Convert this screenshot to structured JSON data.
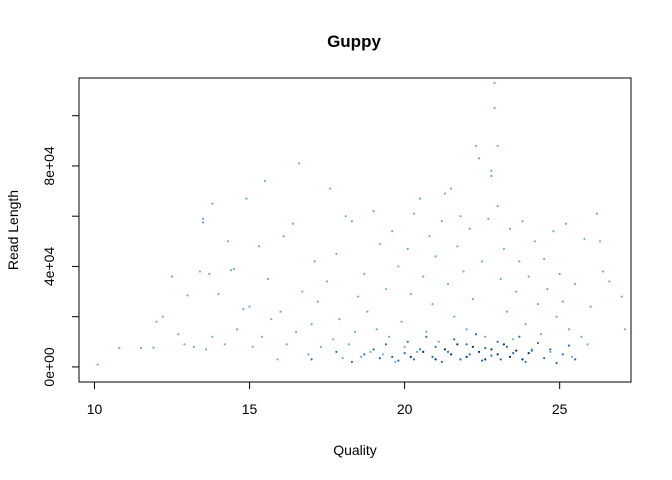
{
  "chart_data": {
    "type": "scatter",
    "title": "Guppy",
    "xlabel": "Quality",
    "ylabel": "Read Length",
    "xlim": [
      9.5,
      27.3
    ],
    "ylim": [
      -6000,
      115000
    ],
    "xticks": [
      10,
      15,
      20,
      25
    ],
    "xtick_labels": [
      "10",
      "15",
      "20",
      "25"
    ],
    "yticks": [
      0,
      20000,
      40000,
      60000,
      80000,
      100000
    ],
    "ytick_labels": [
      "0e+00",
      "",
      "4e+04",
      "",
      "8e+04",
      ""
    ],
    "grid": false,
    "legend": "none",
    "colors": {
      "light": "#6BAED6",
      "medium": "#2171B5",
      "dark": "#08306B",
      "axis": "#000000"
    },
    "series": [
      {
        "values": [
          [
            10.1,
            900
          ],
          [
            10.8,
            7500
          ],
          [
            11.5,
            7600
          ],
          [
            11.9,
            7700
          ],
          [
            12.0,
            18000
          ],
          [
            12.2,
            20000
          ],
          [
            12.5,
            36000
          ],
          [
            12.7,
            13000
          ],
          [
            12.9,
            9000
          ],
          [
            13.0,
            28500
          ],
          [
            13.2,
            8000
          ],
          [
            13.4,
            38000
          ],
          [
            13.5,
            59000
          ],
          [
            13.5,
            57500
          ],
          [
            13.6,
            7000
          ],
          [
            13.7,
            37000
          ],
          [
            13.8,
            12000
          ],
          [
            13.8,
            65000
          ],
          [
            14.0,
            29000
          ],
          [
            14.2,
            9000
          ],
          [
            14.3,
            50000
          ],
          [
            14.4,
            38500
          ],
          [
            14.5,
            39000
          ],
          [
            14.6,
            15000
          ],
          [
            14.8,
            23000
          ],
          [
            14.9,
            67000
          ],
          [
            15.0,
            24000
          ],
          [
            15.1,
            8000
          ],
          [
            15.3,
            48000
          ],
          [
            15.4,
            12000
          ],
          [
            15.5,
            74000
          ],
          [
            15.6,
            35000
          ],
          [
            15.7,
            19000
          ],
          [
            15.9,
            3000
          ],
          [
            16.0,
            22000
          ],
          [
            16.1,
            52000
          ],
          [
            16.2,
            9000
          ],
          [
            16.4,
            57000
          ],
          [
            16.5,
            14000
          ],
          [
            16.6,
            81000
          ],
          [
            16.7,
            30000
          ],
          [
            16.9,
            5000
          ],
          [
            17.0,
            17000
          ],
          [
            17.1,
            42000
          ],
          [
            17.2,
            26000
          ],
          [
            17.3,
            8000
          ],
          [
            17.5,
            34000
          ],
          [
            17.6,
            71000
          ],
          [
            17.7,
            11000
          ],
          [
            17.8,
            45000
          ],
          [
            17.9,
            19000
          ],
          [
            18.0,
            3500
          ],
          [
            18.1,
            60000
          ],
          [
            18.2,
            9000
          ],
          [
            18.3,
            58000
          ],
          [
            18.4,
            14000
          ],
          [
            18.5,
            28000
          ],
          [
            18.6,
            4000
          ],
          [
            18.7,
            37000
          ],
          [
            18.8,
            22000
          ],
          [
            18.9,
            6000
          ],
          [
            19.0,
            62000
          ],
          [
            19.1,
            15000
          ],
          [
            19.2,
            49000
          ],
          [
            19.3,
            5000
          ],
          [
            19.4,
            31000
          ],
          [
            19.5,
            12000
          ],
          [
            19.6,
            54000
          ],
          [
            19.7,
            2000
          ],
          [
            19.8,
            40000
          ],
          [
            19.9,
            18000
          ],
          [
            20.0,
            8000
          ],
          [
            20.1,
            47000
          ],
          [
            20.2,
            29000
          ],
          [
            20.3,
            61000
          ],
          [
            20.4,
            6000
          ],
          [
            20.5,
            67000
          ],
          [
            20.6,
            36000
          ],
          [
            20.7,
            14000
          ],
          [
            20.8,
            52000
          ],
          [
            20.9,
            25000
          ],
          [
            21.0,
            44000
          ],
          [
            21.1,
            10000
          ],
          [
            21.2,
            58000
          ],
          [
            21.3,
            69000
          ],
          [
            21.4,
            33000
          ],
          [
            21.5,
            71000
          ],
          [
            21.6,
            20000
          ],
          [
            21.7,
            48000
          ],
          [
            21.8,
            60000
          ],
          [
            21.9,
            38000
          ],
          [
            22.0,
            15000
          ],
          [
            22.1,
            55000
          ],
          [
            22.2,
            27000
          ],
          [
            22.3,
            88000
          ],
          [
            22.4,
            83000
          ],
          [
            22.5,
            42000
          ],
          [
            22.6,
            12000
          ],
          [
            22.7,
            59000
          ],
          [
            22.8,
            76000
          ],
          [
            22.8,
            78000
          ],
          [
            22.9,
            103000
          ],
          [
            22.9,
            113000
          ],
          [
            23.0,
            88000
          ],
          [
            23.0,
            64000
          ],
          [
            23.1,
            35000
          ],
          [
            23.2,
            47000
          ],
          [
            23.3,
            22000
          ],
          [
            23.4,
            55000
          ],
          [
            23.5,
            11000
          ],
          [
            23.6,
            30000
          ],
          [
            23.7,
            42000
          ],
          [
            23.8,
            58000
          ],
          [
            23.9,
            17000
          ],
          [
            24.0,
            36000
          ],
          [
            24.1,
            7000
          ],
          [
            24.2,
            50000
          ],
          [
            24.3,
            25000
          ],
          [
            24.4,
            13000
          ],
          [
            24.5,
            43000
          ],
          [
            24.6,
            31000
          ],
          [
            24.7,
            6000
          ],
          [
            24.8,
            54000
          ],
          [
            24.9,
            20000
          ],
          [
            25.0,
            37000
          ],
          [
            25.1,
            26000
          ],
          [
            25.2,
            57000
          ],
          [
            25.3,
            15000
          ],
          [
            25.4,
            4000
          ],
          [
            25.5,
            33000
          ],
          [
            25.7,
            12000
          ],
          [
            25.8,
            51000
          ],
          [
            25.9,
            9000
          ],
          [
            26.2,
            61000
          ],
          [
            26.3,
            50000
          ],
          [
            26.4,
            38000
          ],
          [
            26.6,
            34000
          ],
          [
            27.0,
            28000
          ],
          [
            27.1,
            15000
          ],
          [
            26.0,
            24000
          ]
        ],
        "color_key": "light"
      },
      {
        "values": [
          [
            17.0,
            3000
          ],
          [
            17.8,
            6000
          ],
          [
            18.3,
            2000
          ],
          [
            18.7,
            5000
          ],
          [
            19.0,
            7000
          ],
          [
            19.2,
            3500
          ],
          [
            19.4,
            9000
          ],
          [
            19.6,
            4000
          ],
          [
            19.8,
            2500
          ],
          [
            20.0,
            5500
          ],
          [
            20.1,
            10000
          ],
          [
            20.3,
            3000
          ],
          [
            20.5,
            7000
          ],
          [
            20.7,
            12000
          ],
          [
            20.9,
            4000
          ],
          [
            21.0,
            8000
          ],
          [
            21.2,
            2000
          ],
          [
            21.4,
            6000
          ],
          [
            21.6,
            11000
          ],
          [
            21.8,
            3000
          ],
          [
            22.0,
            9000
          ],
          [
            22.1,
            5000
          ],
          [
            22.3,
            13000
          ],
          [
            22.5,
            2500
          ],
          [
            22.6,
            7500
          ],
          [
            22.8,
            4500
          ],
          [
            23.0,
            10000
          ],
          [
            23.1,
            3000
          ],
          [
            23.3,
            8000
          ],
          [
            23.5,
            5500
          ],
          [
            23.7,
            12000
          ],
          [
            23.9,
            2000
          ],
          [
            24.1,
            6500
          ],
          [
            24.3,
            9500
          ],
          [
            24.5,
            3500
          ],
          [
            24.7,
            7000
          ],
          [
            24.9,
            1500
          ],
          [
            25.1,
            5000
          ],
          [
            25.3,
            8500
          ],
          [
            25.5,
            3000
          ]
        ],
        "color_key": "medium"
      },
      {
        "values": [
          [
            20.2,
            4000
          ],
          [
            20.6,
            6000
          ],
          [
            21.0,
            3000
          ],
          [
            21.3,
            7000
          ],
          [
            21.5,
            5000
          ],
          [
            21.7,
            9000
          ],
          [
            22.0,
            4000
          ],
          [
            22.2,
            8000
          ],
          [
            22.4,
            6000
          ],
          [
            22.6,
            3000
          ],
          [
            22.8,
            7000
          ],
          [
            23.0,
            5000
          ],
          [
            23.2,
            9000
          ],
          [
            23.4,
            4000
          ],
          [
            23.6,
            6500
          ],
          [
            23.8,
            3000
          ],
          [
            24.0,
            5500
          ]
        ],
        "color_key": "dark"
      }
    ]
  }
}
